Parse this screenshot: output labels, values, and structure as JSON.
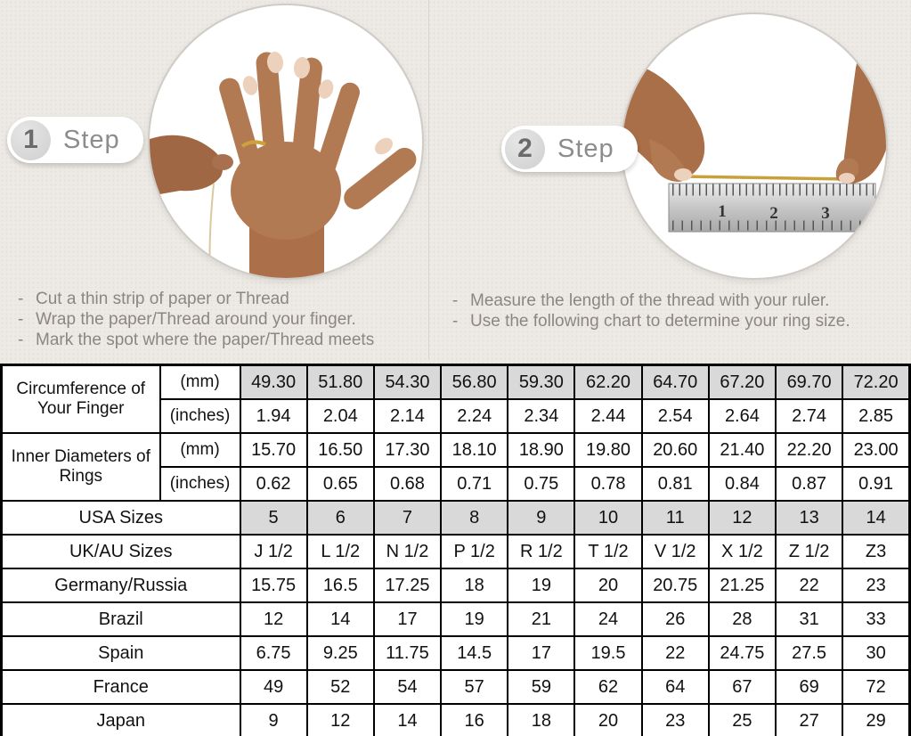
{
  "bullet": "-",
  "colors": {
    "background": "#edeae5",
    "table_border": "#000000",
    "shaded_cell": "#d9d9d9",
    "step_text": "#8c8c8c",
    "instruction_text": "#8b8680",
    "thread_gold": "#c9a13a",
    "skin_tone": "#b27a52"
  },
  "steps": [
    {
      "number": "1",
      "label": "Step",
      "photo": "hand-with-ring-wrapping-thread-around-finger",
      "instructions": [
        "Cut a thin strip of paper or Thread",
        "Wrap the paper/Thread around your finger.",
        "Mark the spot where the paper/Thread meets"
      ]
    },
    {
      "number": "2",
      "label": "Step",
      "photo": "hands-measuring-thread-length-with-ruler",
      "instructions": [
        "Measure the length of the thread with your ruler.",
        "Use the following chart to determine your ring size."
      ]
    }
  ],
  "ruler_numbers": [
    "1",
    "2",
    "3"
  ],
  "chart_data": {
    "type": "table",
    "columns": 10,
    "rows": [
      {
        "label": "Circumference of Your Finger",
        "labelRowspan": 2,
        "unit": "(mm)",
        "shaded": true,
        "values": [
          "49.30",
          "51.80",
          "54.30",
          "56.80",
          "59.30",
          "62.20",
          "64.70",
          "67.20",
          "69.70",
          "72.20"
        ]
      },
      {
        "unit": "(inches)",
        "shaded": false,
        "values": [
          "1.94",
          "2.04",
          "2.14",
          "2.24",
          "2.34",
          "2.44",
          "2.54",
          "2.64",
          "2.74",
          "2.85"
        ]
      },
      {
        "label": "Inner Diameters of Rings",
        "labelRowspan": 2,
        "unit": "(mm)",
        "shaded": false,
        "values": [
          "15.70",
          "16.50",
          "17.30",
          "18.10",
          "18.90",
          "19.80",
          "20.60",
          "21.40",
          "22.20",
          "23.00"
        ]
      },
      {
        "unit": "(inches)",
        "shaded": false,
        "values": [
          "0.62",
          "0.65",
          "0.68",
          "0.71",
          "0.75",
          "0.78",
          "0.81",
          "0.84",
          "0.87",
          "0.91"
        ]
      },
      {
        "label": "USA Sizes",
        "labelColspan": 2,
        "shaded": true,
        "values": [
          "5",
          "6",
          "7",
          "8",
          "9",
          "10",
          "11",
          "12",
          "13",
          "14"
        ]
      },
      {
        "label": "UK/AU Sizes",
        "labelColspan": 2,
        "shaded": false,
        "values": [
          "J 1/2",
          "L 1/2",
          "N 1/2",
          "P 1/2",
          "R 1/2",
          "T 1/2",
          "V 1/2",
          "X 1/2",
          "Z 1/2",
          "Z3"
        ]
      },
      {
        "label": "Germany/Russia",
        "labelColspan": 2,
        "shaded": false,
        "values": [
          "15.75",
          "16.5",
          "17.25",
          "18",
          "19",
          "20",
          "20.75",
          "21.25",
          "22",
          "23"
        ]
      },
      {
        "label": "Brazil",
        "labelColspan": 2,
        "shaded": false,
        "values": [
          "12",
          "14",
          "17",
          "19",
          "21",
          "24",
          "26",
          "28",
          "31",
          "33"
        ]
      },
      {
        "label": "Spain",
        "labelColspan": 2,
        "shaded": false,
        "values": [
          "6.75",
          "9.25",
          "11.75",
          "14.5",
          "17",
          "19.5",
          "22",
          "24.75",
          "27.5",
          "30"
        ]
      },
      {
        "label": "France",
        "labelColspan": 2,
        "shaded": false,
        "values": [
          "49",
          "52",
          "54",
          "57",
          "59",
          "62",
          "64",
          "67",
          "69",
          "72"
        ]
      },
      {
        "label": "Japan",
        "labelColspan": 2,
        "shaded": false,
        "values": [
          "9",
          "12",
          "14",
          "16",
          "18",
          "20",
          "23",
          "25",
          "27",
          "29"
        ]
      }
    ]
  }
}
